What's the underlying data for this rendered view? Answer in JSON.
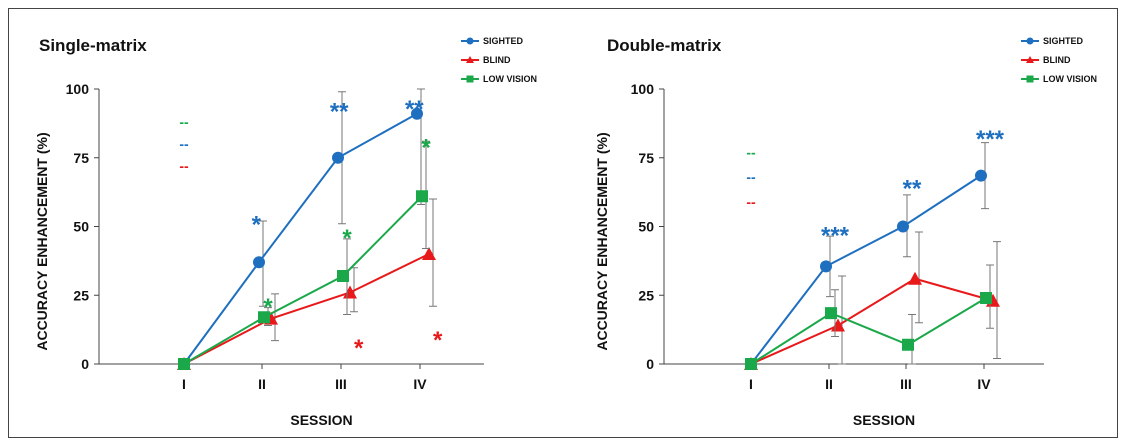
{
  "chart_data": [
    {
      "type": "line",
      "title": "Single-matrix",
      "xlabel": "SESSION",
      "ylabel": "ACCURACY ENHANCEMENT (%)",
      "categories": [
        "I",
        "II",
        "III",
        "IV"
      ],
      "ylim": [
        0,
        100
      ],
      "yticks": [
        0,
        25,
        50,
        75,
        100
      ],
      "grid": false,
      "legend_position": "top-right",
      "series": [
        {
          "name": "SIGHTED",
          "color": "#1f6fc0",
          "marker": "circle",
          "values": [
            0,
            37,
            75,
            91
          ],
          "err_low": [
            0,
            16,
            24,
            33
          ],
          "err_high": [
            0,
            15,
            24,
            9
          ]
        },
        {
          "name": "BLIND",
          "color": "#e8191b",
          "marker": "triangle",
          "values": [
            0,
            16.5,
            26,
            40
          ],
          "err_low": [
            0,
            8,
            7,
            19
          ],
          "err_high": [
            0,
            9,
            9,
            20
          ]
        },
        {
          "name": "LOW VISION",
          "color": "#1aa84a",
          "marker": "square",
          "values": [
            0,
            17,
            32,
            61
          ],
          "err_low": [
            0,
            3,
            14,
            19
          ],
          "err_high": [
            0,
            3.5,
            13.5,
            20
          ]
        }
      ],
      "significance": [
        {
          "category": "II",
          "series": "SIGHTED",
          "label": "*",
          "y": 53,
          "dx": -0.15
        },
        {
          "category": "III",
          "series": "SIGHTED",
          "label": "**",
          "y": 94,
          "dx": -0.1
        },
        {
          "category": "IV",
          "series": "SIGHTED",
          "label": "**",
          "y": 95,
          "dx": -0.15
        },
        {
          "category": "II",
          "series": "LOW VISION",
          "label": "*",
          "y": 23,
          "dx": 0
        },
        {
          "category": "III",
          "series": "LOW VISION",
          "label": "*",
          "y": 48,
          "dx": 0
        },
        {
          "category": "IV",
          "series": "LOW VISION",
          "label": "*",
          "y": 81,
          "dx": 0
        },
        {
          "category": "III",
          "series": "BLIND",
          "label": "*",
          "y": 8,
          "dx": 0.15
        },
        {
          "category": "IV",
          "series": "BLIND",
          "label": "*",
          "y": 11,
          "dx": 0.15
        }
      ],
      "legend_dashes": [
        {
          "series": "LOW VISION",
          "label": "--",
          "y": 88
        },
        {
          "series": "SIGHTED",
          "label": "--",
          "y": 80
        },
        {
          "series": "BLIND",
          "label": "--",
          "y": 72
        }
      ]
    },
    {
      "type": "line",
      "title": "Double-matrix",
      "xlabel": "SESSION",
      "ylabel": "ACCURACY ENHANCEMENT (%)",
      "categories": [
        "I",
        "II",
        "III",
        "IV"
      ],
      "ylim": [
        0,
        100
      ],
      "yticks": [
        0,
        25,
        50,
        75,
        100
      ],
      "grid": false,
      "legend_position": "top-right",
      "series": [
        {
          "name": "SIGHTED",
          "color": "#1f6fc0",
          "marker": "circle",
          "values": [
            0,
            35.5,
            50,
            68.5
          ],
          "err_low": [
            0,
            11,
            11,
            12
          ],
          "err_high": [
            0,
            11,
            11.5,
            12
          ]
        },
        {
          "name": "BLIND",
          "color": "#e8191b",
          "marker": "triangle",
          "values": [
            0,
            14,
            31,
            23
          ],
          "err_low": [
            0,
            14,
            16,
            21
          ],
          "err_high": [
            0,
            18,
            17,
            21.5
          ]
        },
        {
          "name": "LOW VISION",
          "color": "#1aa84a",
          "marker": "square",
          "values": [
            0,
            18.5,
            7,
            24
          ],
          "err_low": [
            0,
            8.5,
            7,
            11
          ],
          "err_high": [
            0,
            8.5,
            11,
            12
          ]
        }
      ],
      "significance": [
        {
          "category": "II",
          "series": "SIGHTED",
          "label": "***",
          "y": 49,
          "dx": 0
        },
        {
          "category": "III",
          "series": "SIGHTED",
          "label": "**",
          "y": 66,
          "dx": 0
        },
        {
          "category": "IV",
          "series": "SIGHTED",
          "label": "***",
          "y": 84,
          "dx": 0
        }
      ],
      "legend_dashes": [
        {
          "series": "LOW VISION",
          "label": "--",
          "y": 77
        },
        {
          "series": "SIGHTED",
          "label": "--",
          "y": 68
        },
        {
          "series": "BLIND",
          "label": "--",
          "y": 59
        }
      ]
    }
  ]
}
